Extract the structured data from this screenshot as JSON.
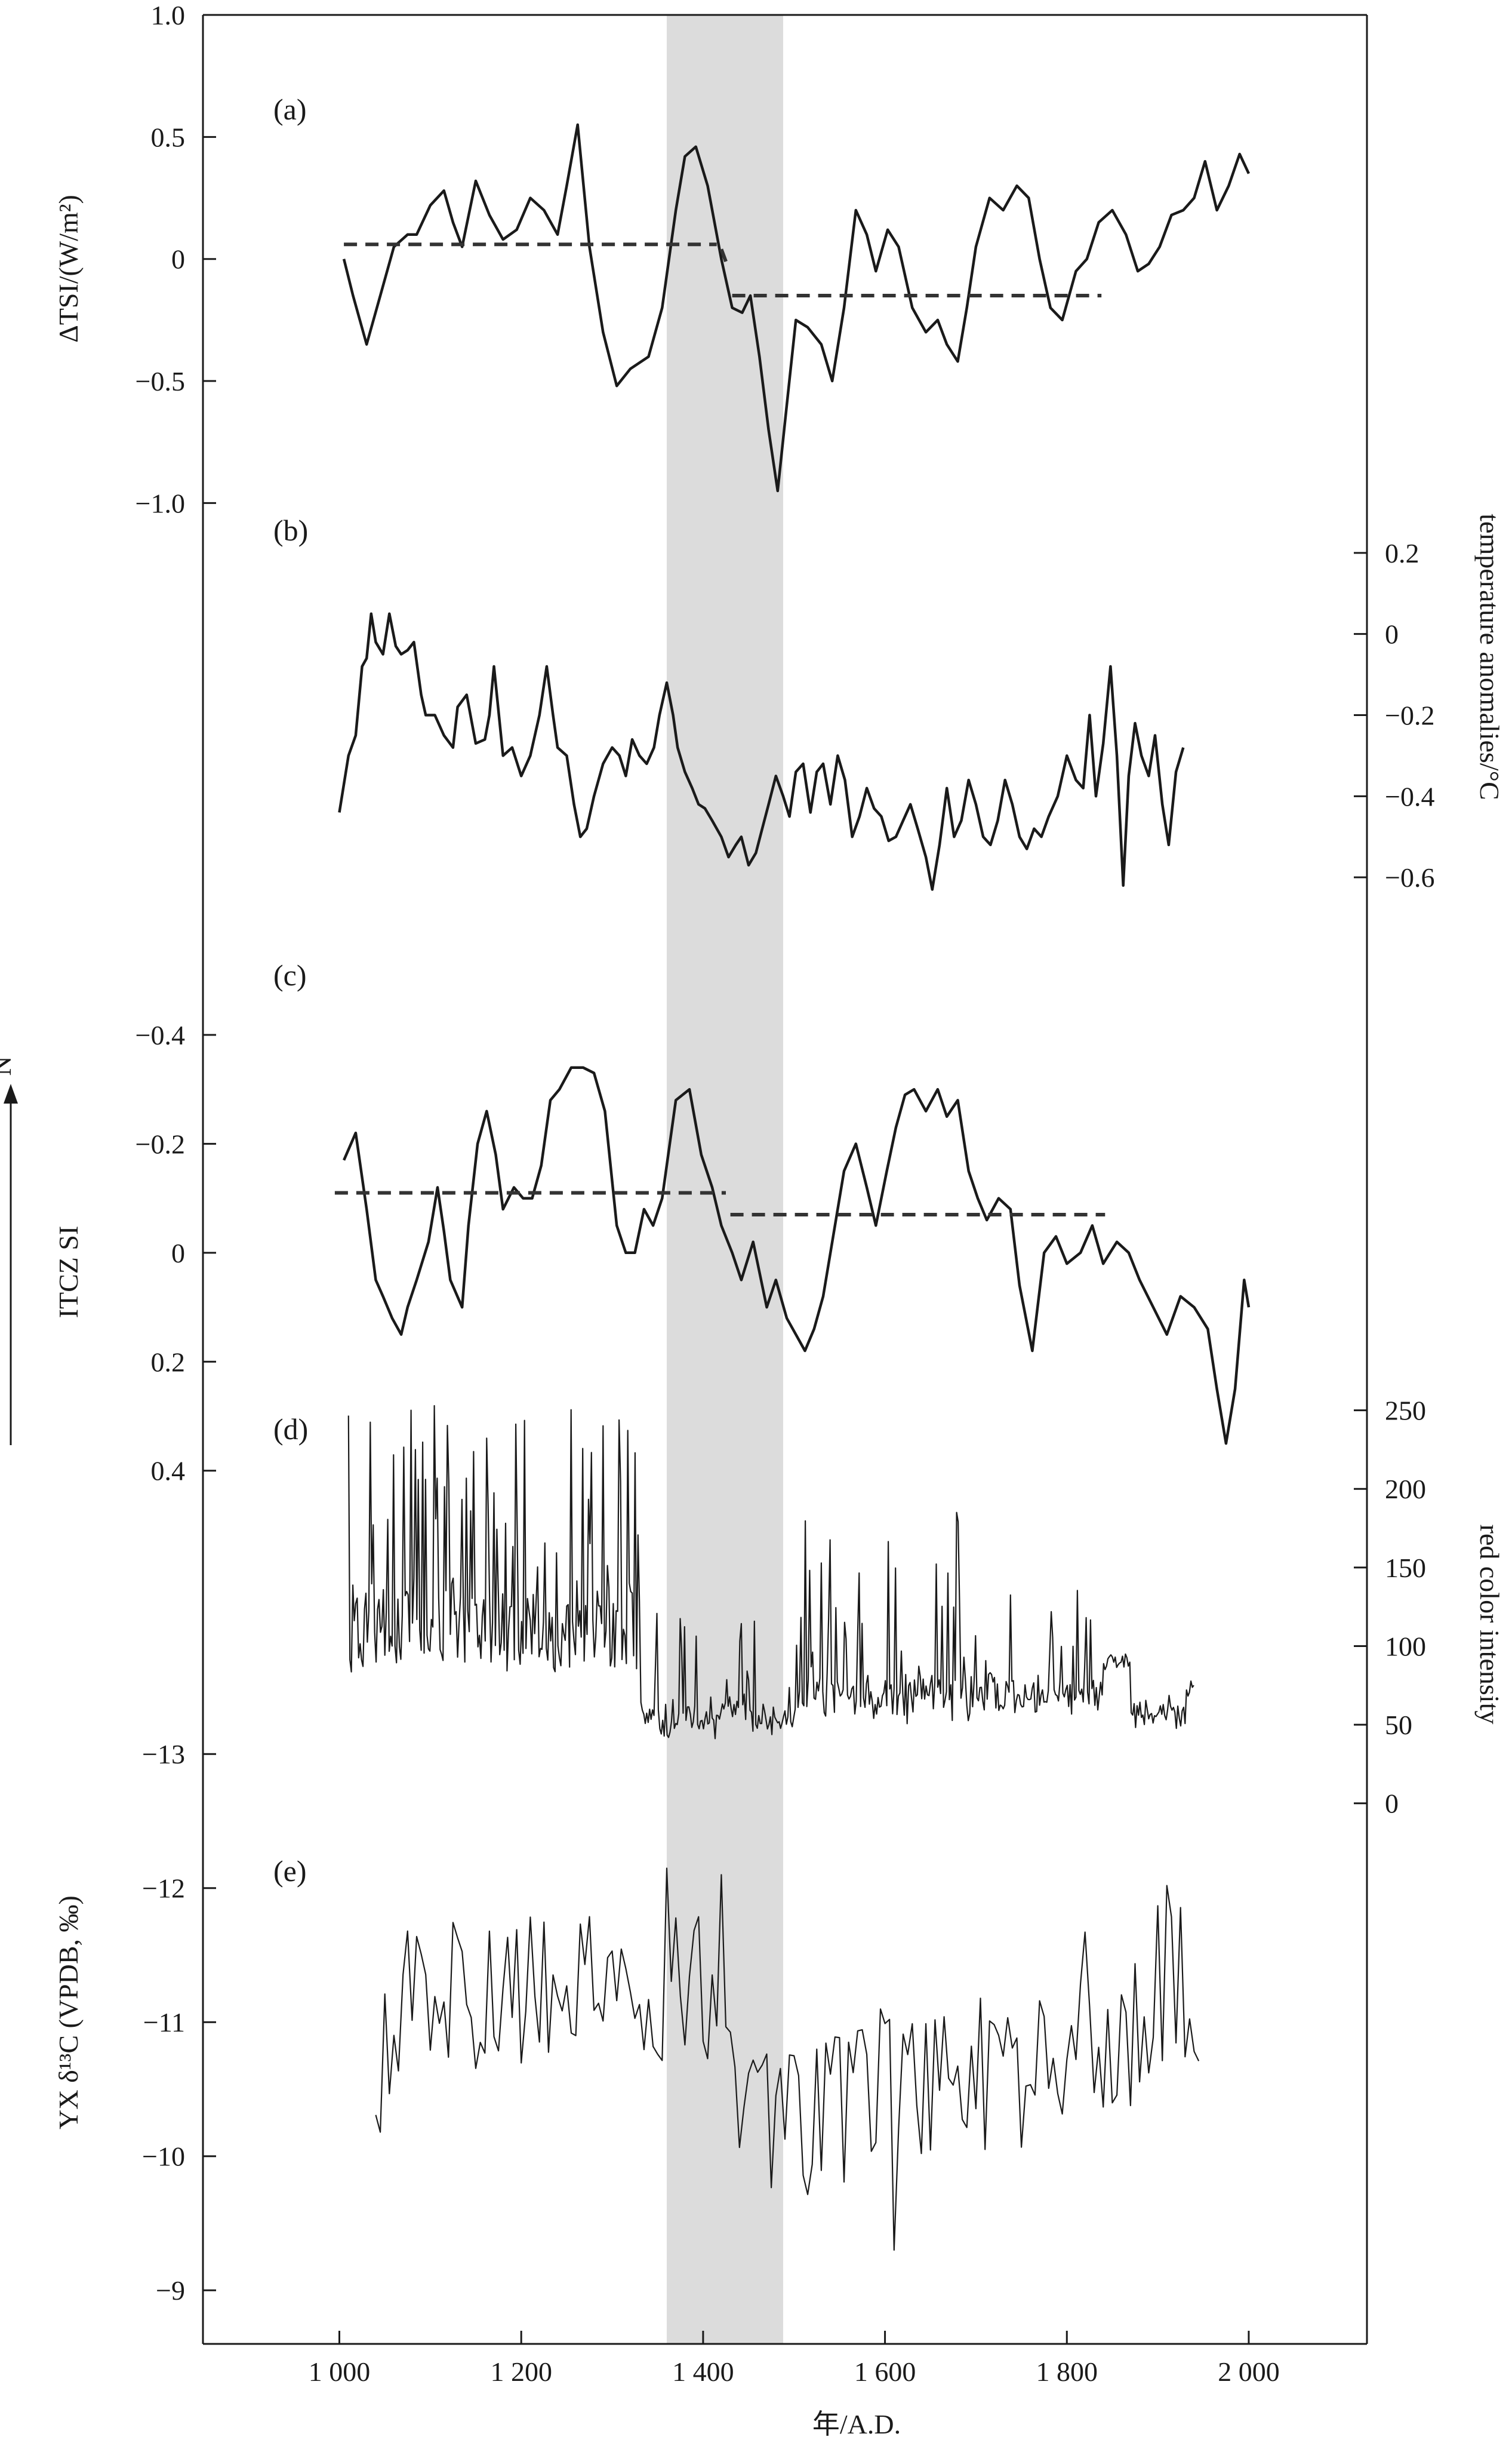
{
  "chart_data": {
    "type": "line",
    "x_axis": {
      "label": "年/A.D.",
      "range": [
        850,
        2130
      ],
      "ticks": [
        1000,
        1200,
        1400,
        1600,
        1800,
        2000
      ],
      "tick_labels": [
        "1 000",
        "1 200",
        "1 400",
        "1 600",
        "1 800",
        "2 000"
      ]
    },
    "shaded_interval": {
      "x": [
        1360,
        1488
      ],
      "color": "#dcdcdc"
    },
    "panels": [
      {
        "id": "a",
        "label": "(a)",
        "side": "left",
        "ylabel": "ΔTSI/(W/m²)",
        "ylim": [
          -1.3,
          1.0
        ],
        "invert": false,
        "ticks": [
          1.0,
          0.5,
          0,
          -0.5,
          -1.0
        ],
        "tick_labels": [
          "1.0",
          "0.5",
          "0",
          "−0.5",
          "−1.0"
        ],
        "series": [
          {
            "style": "solid",
            "x": [
              1005,
              1015,
              1030,
              1045,
              1060,
              1075,
              1085,
              1100,
              1115,
              1125,
              1135,
              1150,
              1165,
              1180,
              1195,
              1210,
              1225,
              1240,
              1250,
              1262,
              1275,
              1290,
              1305,
              1320,
              1340,
              1355,
              1370,
              1380,
              1392,
              1405,
              1420,
              1432,
              1443,
              1452,
              1462,
              1472,
              1482,
              1492,
              1502,
              1515,
              1530,
              1542,
              1555,
              1568,
              1580,
              1590,
              1603,
              1615,
              1630,
              1645,
              1658,
              1668,
              1680,
              1690,
              1700,
              1715,
              1730,
              1745,
              1758,
              1770,
              1782,
              1795,
              1810,
              1822,
              1835,
              1850,
              1865,
              1878,
              1890,
              1902,
              1915,
              1928,
              1940,
              1952,
              1965,
              1978,
              1990,
              2000
            ],
            "y": [
              0.0,
              -0.15,
              -0.35,
              -0.15,
              0.05,
              0.1,
              0.1,
              0.22,
              0.28,
              0.15,
              0.05,
              0.32,
              0.18,
              0.08,
              0.12,
              0.25,
              0.2,
              0.1,
              0.3,
              0.55,
              0.05,
              -0.3,
              -0.52,
              -0.45,
              -0.4,
              -0.2,
              0.2,
              0.42,
              0.46,
              0.3,
              0.0,
              -0.2,
              -0.22,
              -0.15,
              -0.4,
              -0.7,
              -0.95,
              -0.6,
              -0.25,
              -0.28,
              -0.35,
              -0.5,
              -0.2,
              0.2,
              0.1,
              -0.05,
              0.12,
              0.05,
              -0.2,
              -0.3,
              -0.25,
              -0.35,
              -0.42,
              -0.2,
              0.05,
              0.25,
              0.2,
              0.3,
              0.25,
              0.0,
              -0.2,
              -0.25,
              -0.05,
              0.0,
              0.15,
              0.2,
              0.1,
              -0.05,
              -0.02,
              0.05,
              0.18,
              0.2,
              0.25,
              0.4,
              0.2,
              0.3,
              0.43,
              0.35
            ]
          },
          {
            "style": "dashed",
            "x": [
              1005,
              1415
            ],
            "y": [
              0.06,
              0.06
            ]
          },
          {
            "style": "dashed",
            "x": [
              1420,
              1428
            ],
            "y": [
              0.04,
              -0.04
            ]
          },
          {
            "style": "dashed",
            "x": [
              1432,
              1838
            ],
            "y": [
              -0.15,
              -0.15
            ]
          }
        ]
      },
      {
        "id": "b",
        "label": "(b)",
        "side": "right",
        "ylabel": "temperature anomalies/°C",
        "ylim": [
          -0.8,
          0.4
        ],
        "invert": false,
        "ticks": [
          0.2,
          0,
          -0.2,
          -0.4,
          -0.6
        ],
        "tick_labels": [
          "0.2",
          "0",
          "−0.2",
          "−0.4",
          "−0.6"
        ],
        "series": [
          {
            "style": "solid",
            "x": [
              1000,
              1010,
              1018,
              1025,
              1030,
              1035,
              1040,
              1048,
              1055,
              1062,
              1068,
              1075,
              1082,
              1090,
              1095,
              1105,
              1115,
              1125,
              1130,
              1140,
              1150,
              1160,
              1165,
              1170,
              1180,
              1190,
              1200,
              1210,
              1220,
              1228,
              1235,
              1240,
              1250,
              1258,
              1265,
              1272,
              1280,
              1290,
              1300,
              1308,
              1315,
              1322,
              1330,
              1338,
              1346,
              1352,
              1360,
              1367,
              1372,
              1380,
              1388,
              1395,
              1402,
              1410,
              1420,
              1428,
              1436,
              1442,
              1450,
              1458,
              1465,
              1472,
              1480,
              1488,
              1495,
              1502,
              1510,
              1518,
              1525,
              1532,
              1540,
              1548,
              1556,
              1564,
              1572,
              1580,
              1588,
              1596,
              1604,
              1612,
              1620,
              1628,
              1636,
              1645,
              1652,
              1660,
              1668,
              1676,
              1684,
              1692,
              1700,
              1708,
              1716,
              1724,
              1732,
              1740,
              1748,
              1756,
              1764,
              1772,
              1780,
              1790,
              1800,
              1810,
              1818,
              1825,
              1832,
              1840,
              1848,
              1855,
              1862,
              1868,
              1875,
              1882,
              1890,
              1897,
              1905,
              1912,
              1920,
              1928
            ],
            "y": [
              -0.44,
              -0.3,
              -0.25,
              -0.08,
              -0.06,
              0.05,
              -0.02,
              -0.05,
              0.05,
              -0.03,
              -0.05,
              -0.04,
              -0.02,
              -0.15,
              -0.2,
              -0.2,
              -0.25,
              -0.28,
              -0.18,
              -0.15,
              -0.27,
              -0.26,
              -0.2,
              -0.08,
              -0.3,
              -0.28,
              -0.35,
              -0.3,
              -0.2,
              -0.08,
              -0.2,
              -0.28,
              -0.3,
              -0.42,
              -0.5,
              -0.48,
              -0.4,
              -0.32,
              -0.28,
              -0.3,
              -0.35,
              -0.26,
              -0.3,
              -0.32,
              -0.28,
              -0.2,
              -0.12,
              -0.2,
              -0.28,
              -0.34,
              -0.38,
              -0.42,
              -0.43,
              -0.46,
              -0.5,
              -0.55,
              -0.52,
              -0.5,
              -0.57,
              -0.54,
              -0.48,
              -0.42,
              -0.35,
              -0.4,
              -0.45,
              -0.34,
              -0.32,
              -0.44,
              -0.34,
              -0.32,
              -0.42,
              -0.3,
              -0.36,
              -0.5,
              -0.45,
              -0.38,
              -0.43,
              -0.45,
              -0.51,
              -0.5,
              -0.46,
              -0.42,
              -0.48,
              -0.55,
              -0.63,
              -0.52,
              -0.38,
              -0.5,
              -0.46,
              -0.36,
              -0.42,
              -0.5,
              -0.52,
              -0.46,
              -0.36,
              -0.42,
              -0.5,
              -0.53,
              -0.48,
              -0.5,
              -0.45,
              -0.4,
              -0.3,
              -0.36,
              -0.38,
              -0.2,
              -0.4,
              -0.27,
              -0.08,
              -0.3,
              -0.62,
              -0.35,
              -0.22,
              -0.3,
              -0.35,
              -0.25,
              -0.42,
              -0.52,
              -0.34,
              -0.28
            ]
          }
        ]
      },
      {
        "id": "c",
        "label": "(c)",
        "side": "left",
        "ylabel": "ITCZ SI",
        "ylim": [
          0.26,
          -0.48
        ],
        "invert": true,
        "ticks": [
          -0.4,
          -0.2,
          0,
          0.2
        ],
        "tick_labels": [
          "−0.4",
          "−0.2",
          "0",
          "0.2"
        ],
        "arrow_label": "N",
        "series": [
          {
            "style": "solid",
            "x": [
              1005,
              1018,
              1030,
              1040,
              1048,
              1058,
              1068,
              1075,
              1085,
              1098,
              1108,
              1115,
              1122,
              1135,
              1142,
              1152,
              1162,
              1172,
              1180,
              1192,
              1202,
              1212,
              1222,
              1232,
              1242,
              1255,
              1268,
              1280,
              1292,
              1305,
              1315,
              1325,
              1335,
              1345,
              1355,
              1370,
              1385,
              1398,
              1410,
              1420,
              1432,
              1442,
              1455,
              1470,
              1480,
              1492,
              1502,
              1512,
              1522,
              1532,
              1545,
              1555,
              1568,
              1580,
              1590,
              1602,
              1612,
              1622,
              1632,
              1645,
              1658,
              1668,
              1680,
              1692,
              1702,
              1712,
              1725,
              1738,
              1748,
              1762,
              1775,
              1788,
              1800,
              1815,
              1828,
              1840,
              1855,
              1868,
              1880,
              1895,
              1910,
              1925,
              1940,
              1955,
              1965,
              1975,
              1985,
              1995,
              2000
            ],
            "y": [
              -0.17,
              -0.22,
              -0.08,
              0.05,
              0.08,
              0.12,
              0.15,
              0.1,
              0.05,
              -0.02,
              -0.12,
              -0.04,
              0.05,
              0.1,
              -0.05,
              -0.2,
              -0.26,
              -0.18,
              -0.08,
              -0.12,
              -0.1,
              -0.1,
              -0.16,
              -0.28,
              -0.3,
              -0.34,
              -0.34,
              -0.33,
              -0.26,
              -0.05,
              0.0,
              0.0,
              -0.08,
              -0.05,
              -0.1,
              -0.28,
              -0.3,
              -0.18,
              -0.12,
              -0.05,
              0.0,
              0.05,
              -0.02,
              0.1,
              0.05,
              0.12,
              0.15,
              0.18,
              0.14,
              0.08,
              -0.05,
              -0.15,
              -0.2,
              -0.12,
              -0.05,
              -0.15,
              -0.23,
              -0.29,
              -0.3,
              -0.26,
              -0.3,
              -0.25,
              -0.28,
              -0.15,
              -0.1,
              -0.06,
              -0.1,
              -0.08,
              0.06,
              0.18,
              0.0,
              -0.03,
              0.02,
              0.0,
              -0.05,
              0.02,
              -0.02,
              0.0,
              0.05,
              0.1,
              0.15,
              0.08,
              0.1,
              0.14,
              0.25,
              0.35,
              0.25,
              0.05,
              0.1
            ]
          },
          {
            "style": "dashed",
            "x": [
              995,
              1425
            ],
            "y": [
              -0.11,
              -0.11
            ]
          },
          {
            "style": "dashed",
            "x": [
              1430,
              1842
            ],
            "y": [
              -0.07,
              -0.07
            ]
          }
        ]
      },
      {
        "id": "d",
        "label": "(d)",
        "side": "right",
        "ylabel": "red color intensity",
        "ylim": [
          -40,
          300
        ],
        "invert": false,
        "ticks": [
          250,
          200,
          150,
          100,
          50,
          0
        ],
        "tick_labels": [
          "250",
          "200",
          "150",
          "100",
          "50",
          "0"
        ],
        "series": [
          {
            "style": "thin",
            "generator": "noisy_red_intensity",
            "x_range": [
              1010,
              1940
            ]
          }
        ]
      },
      {
        "id": "e",
        "label": "(e)",
        "side": "left",
        "ylabel": "YX δ¹³C (VPDB, ‰)",
        "ylim": [
          -8.6,
          -13.5
        ],
        "invert": true,
        "extra_left_tick": {
          "value": -13,
          "label": "−13"
        },
        "top_label": {
          "value": 0.4,
          "label": "0.4"
        },
        "ticks": [
          -12,
          -11,
          -10,
          -9
        ],
        "tick_labels": [
          "−12",
          "−11",
          "−10",
          "−9"
        ],
        "series": [
          {
            "style": "thin",
            "generator": "noisy_d13c",
            "x_range": [
              1040,
              1945
            ]
          }
        ]
      }
    ]
  }
}
